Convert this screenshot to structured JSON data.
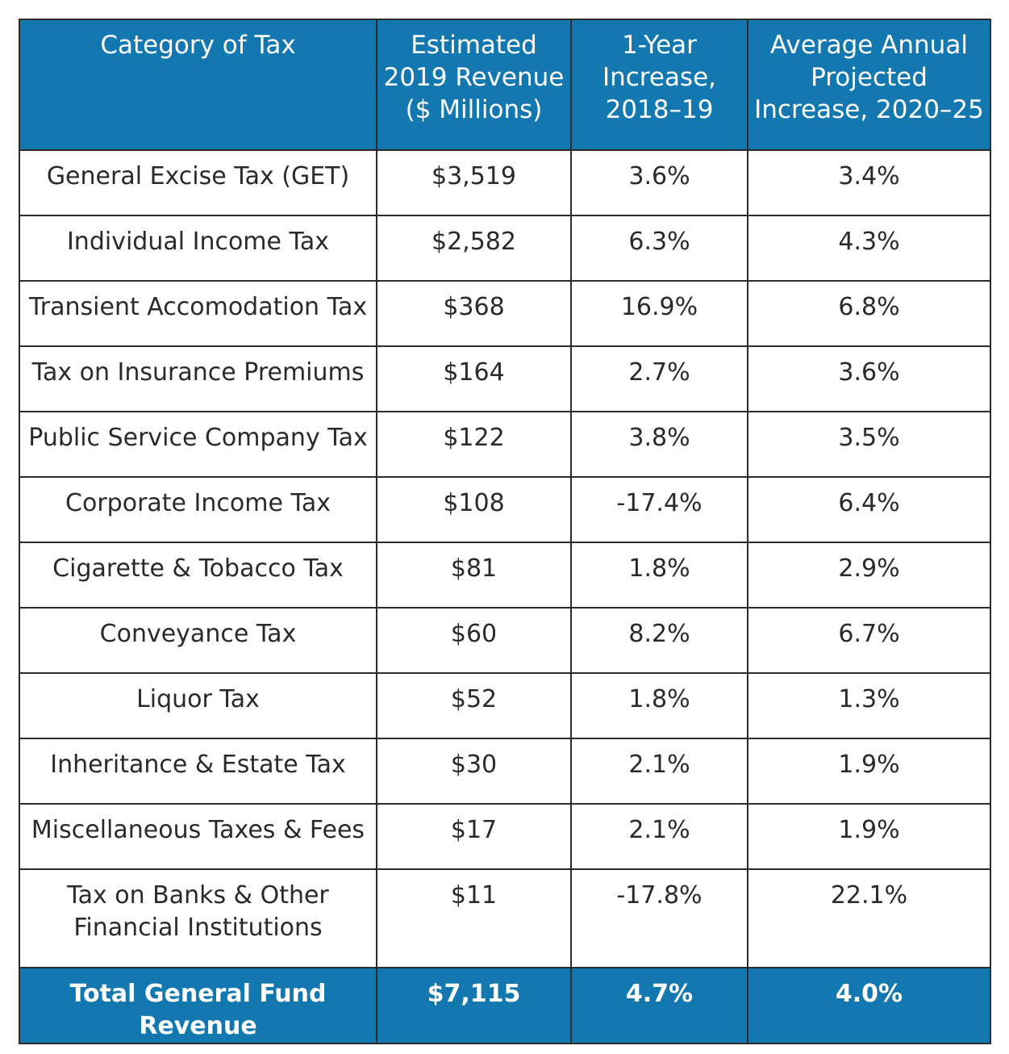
{
  "table": {
    "headers": [
      "Category of Tax",
      "Estimated 2019 Revenue ($ Millions)",
      "1-Year Increase, 2018–19",
      "Average Annual Projected Increase, 2020–25"
    ],
    "header_lines": [
      [
        "Category of Tax"
      ],
      [
        "Estimated",
        "2019 Revenue",
        "($ Millions)"
      ],
      [
        "1-Year",
        "Increase,",
        "2018–19"
      ],
      [
        "Average Annual",
        "Projected",
        "Increase, 2020–25"
      ]
    ],
    "rows": [
      {
        "category": "General Excise Tax (GET)",
        "revenue": "$3,519",
        "one_year": "3.6%",
        "avg_annual": "3.4%"
      },
      {
        "category": "Individual Income Tax",
        "revenue": "$2,582",
        "one_year": "6.3%",
        "avg_annual": "4.3%"
      },
      {
        "category": "Transient Accomodation Tax",
        "revenue": "$368",
        "one_year": "16.9%",
        "avg_annual": "6.8%"
      },
      {
        "category": "Tax on Insurance Premiums",
        "revenue": "$164",
        "one_year": "2.7%",
        "avg_annual": "3.6%"
      },
      {
        "category": "Public Service Company Tax",
        "revenue": "$122",
        "one_year": "3.8%",
        "avg_annual": "3.5%"
      },
      {
        "category": "Corporate Income Tax",
        "revenue": "$108",
        "one_year": "-17.4%",
        "avg_annual": "6.4%"
      },
      {
        "category": "Cigarette & Tobacco Tax",
        "revenue": "$81",
        "one_year": "1.8%",
        "avg_annual": "2.9%"
      },
      {
        "category": "Conveyance Tax",
        "revenue": "$60",
        "one_year": "8.2%",
        "avg_annual": "6.7%"
      },
      {
        "category": "Liquor Tax",
        "revenue": "$52",
        "one_year": "1.8%",
        "avg_annual": "1.3%"
      },
      {
        "category": "Inheritance & Estate Tax",
        "revenue": "$30",
        "one_year": "2.1%",
        "avg_annual": "1.9%"
      },
      {
        "category": "Miscellaneous Taxes & Fees",
        "revenue": "$17",
        "one_year": "2.1%",
        "avg_annual": "1.9%"
      },
      {
        "category": "Tax on Banks & Other Financial Institutions",
        "category_lines": [
          "Tax on Banks & Other",
          "Financial Institutions"
        ],
        "revenue": "$11",
        "one_year": "-17.8%",
        "avg_annual": "22.1%"
      }
    ],
    "total": {
      "category": "Total General Fund Revenue",
      "revenue": "$7,115",
      "one_year": "4.7%",
      "avg_annual": "4.0%"
    }
  },
  "colors": {
    "header_bg": "#1478b0",
    "header_text": "#ffffff",
    "body_text": "#2a2a2a",
    "border": "#2b2b2b"
  }
}
